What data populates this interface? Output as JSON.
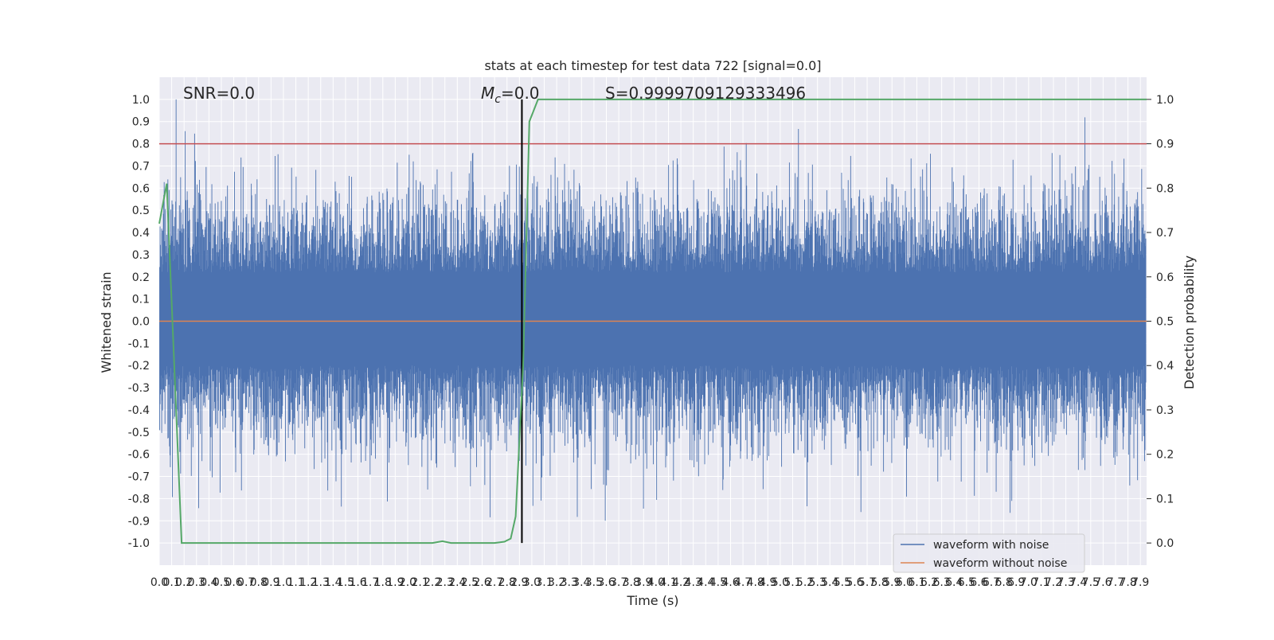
{
  "colors": {
    "background": "#eaeaf2",
    "grid": "#ffffff",
    "noisy": "#4c72b0",
    "clean": "#dd8452",
    "probability": "#55a868",
    "threshold": "#c44e52",
    "marker": "#000000"
  },
  "chart_data": {
    "type": "line",
    "title": "stats at each timestep for test data 722 [signal=0.0]",
    "xlabel": "Time (s)",
    "ylabel_left": "Whitened strain",
    "ylabel_right": "Detection probability",
    "annotations": {
      "snr": "SNR=0.0",
      "mc_symbol": "M",
      "mc_sub": "c",
      "mc_value": "=0.0",
      "score": "S=0.9999709129333496"
    },
    "xlim": [
      0.0,
      7.95
    ],
    "ylim_left": [
      -1.1,
      1.1
    ],
    "ylim_right": [
      -0.05,
      1.05
    ],
    "grid": true,
    "legend_position": "lower-right",
    "x_ticks": [
      "0.0",
      "0.1",
      "0.2",
      "0.3",
      "0.4",
      "0.5",
      "0.6",
      "0.7",
      "0.8",
      "0.9",
      "1.0",
      "1.1",
      "1.2",
      "1.3",
      "1.4",
      "1.5",
      "1.6",
      "1.7",
      "1.8",
      "1.9",
      "2.0",
      "2.1",
      "2.2",
      "2.3",
      "2.4",
      "2.5",
      "2.6",
      "2.7",
      "2.8",
      "2.9",
      "3.0",
      "3.1",
      "3.2",
      "3.3",
      "3.4",
      "3.5",
      "3.6",
      "3.7",
      "3.8",
      "3.9",
      "4.0",
      "4.1",
      "4.2",
      "4.3",
      "4.4",
      "4.5",
      "4.6",
      "4.7",
      "4.8",
      "4.9",
      "5.0",
      "5.1",
      "5.2",
      "5.3",
      "5.4",
      "5.5",
      "5.6",
      "5.7",
      "5.8",
      "5.9",
      "6.0",
      "6.1",
      "6.2",
      "6.3",
      "6.4",
      "6.5",
      "6.6",
      "6.7",
      "6.8",
      "6.9",
      "7.0",
      "7.1",
      "7.2",
      "7.3",
      "7.4",
      "7.5",
      "7.6",
      "7.7",
      "7.8",
      "7.9"
    ],
    "y_ticks_left": [
      "1.0",
      "0.9",
      "0.8",
      "0.7",
      "0.6",
      "0.5",
      "0.4",
      "0.3",
      "0.2",
      "0.1",
      "0.0",
      "-0.1",
      "-0.2",
      "-0.3",
      "-0.4",
      "-0.5",
      "-0.6",
      "-0.7",
      "-0.8",
      "-0.9",
      "-1.0"
    ],
    "y_ticks_right": [
      "1.0",
      "0.9",
      "0.8",
      "0.7",
      "0.6",
      "0.5",
      "0.4",
      "0.3",
      "0.2",
      "0.1",
      "0.0"
    ],
    "threshold_line": {
      "y": 0.8
    },
    "marker_line": {
      "x": 2.92
    },
    "series": [
      {
        "name": "waveform with noise",
        "axis": "left",
        "style": "dense-noise",
        "envelope": [
          -1.0,
          1.0
        ]
      },
      {
        "name": "waveform without noise",
        "axis": "left",
        "y": 0.0
      },
      {
        "name": "",
        "axis": "right",
        "x": [
          0.0,
          0.06,
          0.18,
          0.26,
          0.5,
          1.0,
          1.5,
          2.0,
          2.2,
          2.28,
          2.35,
          2.45,
          2.6,
          2.7,
          2.78,
          2.83,
          2.87,
          2.93,
          2.98,
          3.05,
          3.1,
          4.0,
          5.0,
          6.0,
          7.0,
          7.95
        ],
        "y": [
          0.72,
          0.81,
          0.0,
          0.0,
          0.0,
          0.0,
          0.0,
          0.0,
          0.0,
          0.004,
          0.0,
          0.0,
          0.0,
          0.0,
          0.003,
          0.01,
          0.06,
          0.4,
          0.95,
          1.0,
          1.0,
          1.0,
          1.0,
          1.0,
          1.0,
          1.0
        ]
      }
    ]
  }
}
